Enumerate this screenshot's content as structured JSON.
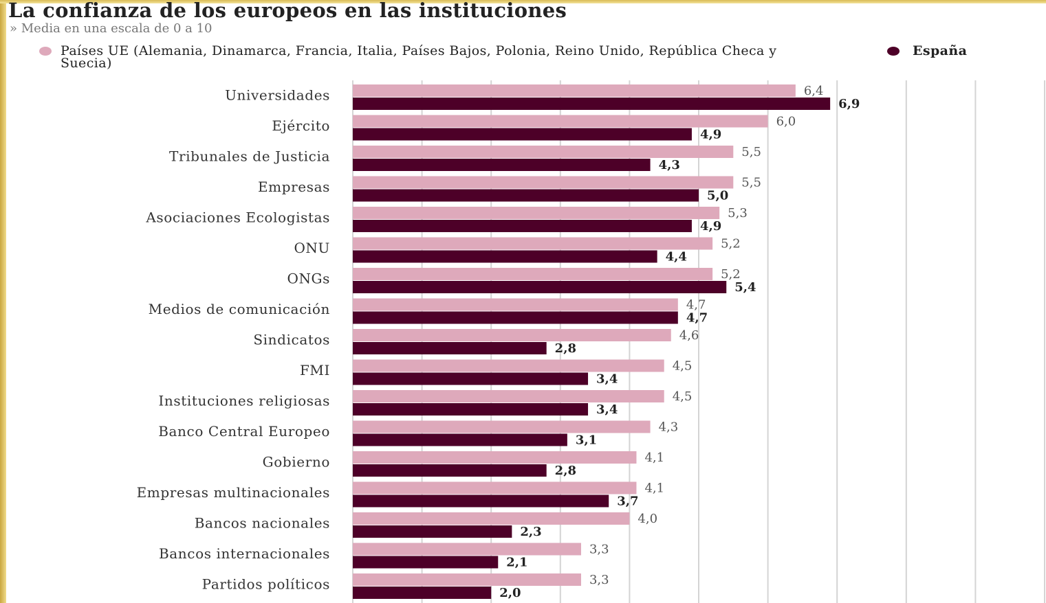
{
  "chart_data": {
    "type": "hbar",
    "title": "La confianza de los europeos en las instituciones",
    "subtitle": "Media en una escala de 0 a 10",
    "categories": [
      "Universidades",
      "Ejército",
      "Tribunales de Justicia",
      "Empresas",
      "Asociaciones Ecologistas",
      "ONU",
      "ONGs",
      "Medios de comunicación",
      "Sindicatos",
      "FMI",
      "Instituciones religiosas",
      "Banco Central Europeo",
      "Gobierno",
      "Empresas multinacionales",
      "Bancos nacionales",
      "Bancos internacionales",
      "Partidos políticos"
    ],
    "series": [
      {
        "name": "Países UE (Alemania, Dinamarca, Francia, Italia, Países Bajos, Polonia, Reino Unido, República Checa y Suecia)",
        "color": "#dea9bb",
        "values": [
          6.4,
          6.0,
          5.5,
          5.5,
          5.3,
          5.2,
          5.2,
          4.7,
          4.6,
          4.5,
          4.5,
          4.3,
          4.1,
          4.1,
          4.0,
          3.3,
          3.3
        ],
        "value_labels": [
          "6,4",
          "6,0",
          "5,5",
          "5,5",
          "5,3",
          "5,2",
          "5,2",
          "4,7",
          "4,6",
          "4,5",
          "4,5",
          "4,3",
          "4,1",
          "4,1",
          "4,0",
          "3,3",
          "3,3"
        ]
      },
      {
        "name": "España",
        "color": "#4d0028",
        "values": [
          6.9,
          4.9,
          4.3,
          5.0,
          4.9,
          4.4,
          5.4,
          4.7,
          2.8,
          3.4,
          3.4,
          3.1,
          2.8,
          3.7,
          2.3,
          2.1,
          2.0
        ],
        "value_labels": [
          "6,9",
          "4,9",
          "4,3",
          "5,0",
          "4,9",
          "4,4",
          "5,4",
          "4,7",
          "2,8",
          "3,4",
          "3,4",
          "3,1",
          "2,8",
          "3,7",
          "2,3",
          "2,1",
          "2,0"
        ]
      }
    ],
    "xlim": [
      0,
      10
    ],
    "xticks": [
      0,
      1,
      2,
      3,
      4,
      5,
      6,
      7,
      8,
      9,
      10
    ],
    "grid": true
  }
}
